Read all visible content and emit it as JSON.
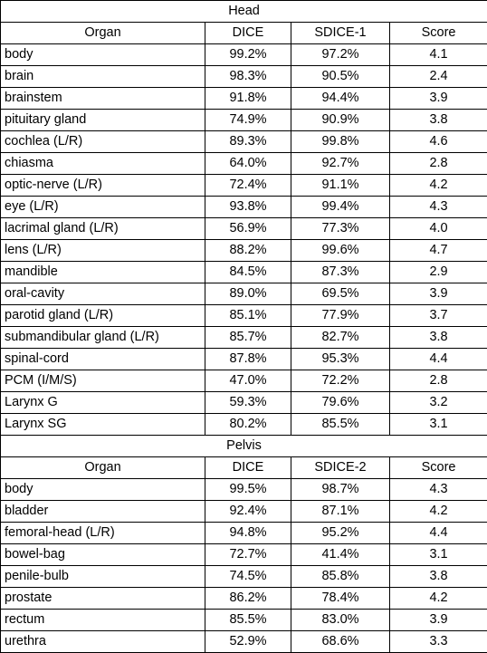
{
  "sections": [
    {
      "title": "Head",
      "columns": [
        "Organ",
        "DICE",
        "SDICE-1",
        "Score"
      ],
      "rows": [
        [
          "body",
          "99.2%",
          "97.2%",
          "4.1"
        ],
        [
          "brain",
          "98.3%",
          "90.5%",
          "2.4"
        ],
        [
          "brainstem",
          "91.8%",
          "94.4%",
          "3.9"
        ],
        [
          "pituitary gland",
          "74.9%",
          "90.9%",
          "3.8"
        ],
        [
          "cochlea (L/R)",
          "89.3%",
          "99.8%",
          "4.6"
        ],
        [
          "chiasma",
          "64.0%",
          "92.7%",
          "2.8"
        ],
        [
          "optic-nerve (L/R)",
          "72.4%",
          "91.1%",
          "4.2"
        ],
        [
          "eye (L/R)",
          "93.8%",
          "99.4%",
          "4.3"
        ],
        [
          "lacrimal gland (L/R)",
          "56.9%",
          "77.3%",
          "4.0"
        ],
        [
          "lens (L/R)",
          "88.2%",
          "99.6%",
          "4.7"
        ],
        [
          "mandible",
          "84.5%",
          "87.3%",
          "2.9"
        ],
        [
          "oral-cavity",
          "89.0%",
          "69.5%",
          "3.9"
        ],
        [
          "parotid gland (L/R)",
          "85.1%",
          "77.9%",
          "3.7"
        ],
        [
          "submandibular gland (L/R)",
          "85.7%",
          "82.7%",
          "3.8"
        ],
        [
          "spinal-cord",
          "87.8%",
          "95.3%",
          "4.4"
        ],
        [
          "PCM (I/M/S)",
          "47.0%",
          "72.2%",
          "2.8"
        ],
        [
          "Larynx G",
          "59.3%",
          "79.6%",
          "3.2"
        ],
        [
          "Larynx SG",
          "80.2%",
          "85.5%",
          "3.1"
        ]
      ]
    },
    {
      "title": "Pelvis",
      "columns": [
        "Organ",
        "DICE",
        "SDICE-2",
        "Score"
      ],
      "rows": [
        [
          "body",
          "99.5%",
          "98.7%",
          "4.3"
        ],
        [
          "bladder",
          "92.4%",
          "87.1%",
          "4.2"
        ],
        [
          "femoral-head (L/R)",
          "94.8%",
          "95.2%",
          "4.4"
        ],
        [
          "bowel-bag",
          "72.7%",
          "41.4%",
          "3.1"
        ],
        [
          "penile-bulb",
          "74.5%",
          "85.8%",
          "3.8"
        ],
        [
          "prostate",
          "86.2%",
          "78.4%",
          "4.2"
        ],
        [
          "rectum",
          "85.5%",
          "83.0%",
          "3.9"
        ],
        [
          "urethra",
          "52.9%",
          "68.6%",
          "3.3"
        ]
      ]
    }
  ]
}
